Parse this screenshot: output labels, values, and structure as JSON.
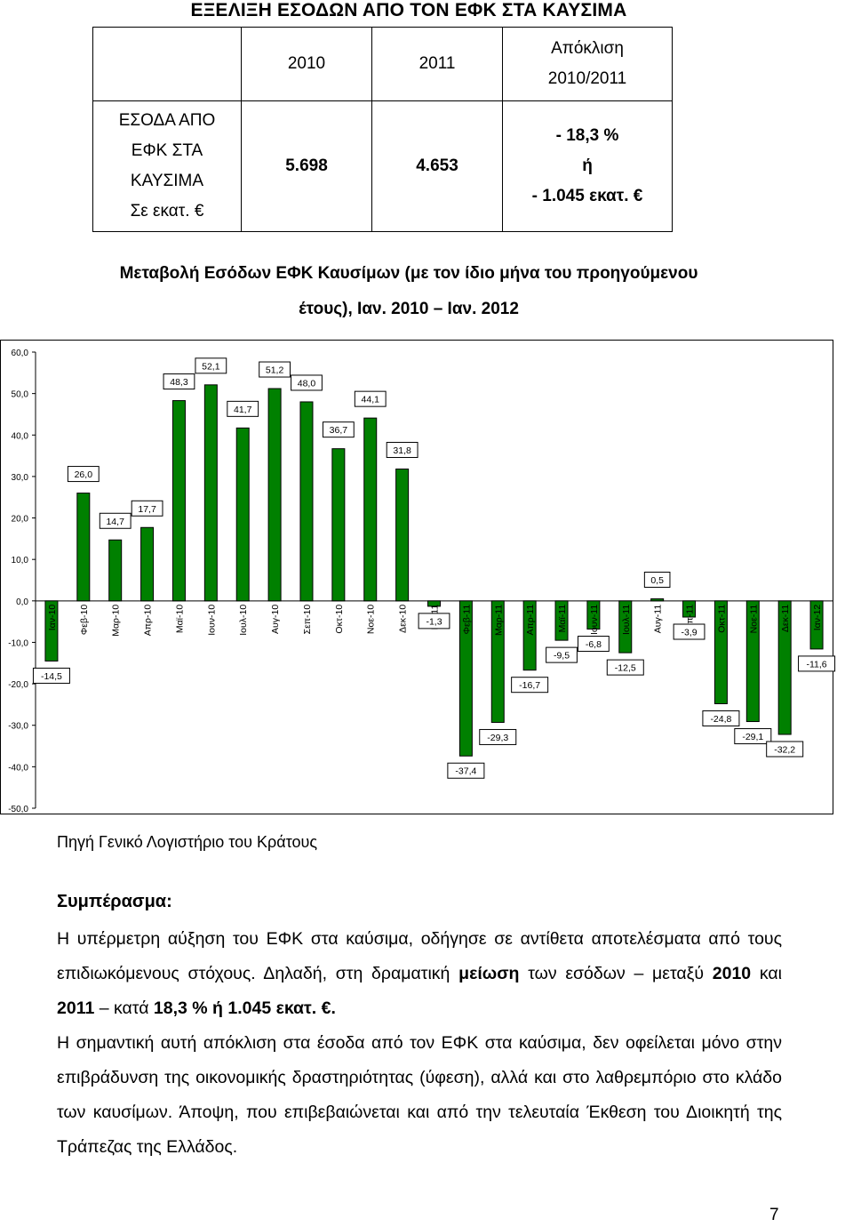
{
  "title": "ΕΞΕΛΙΞΗ ΕΣΟΔΩΝ ΑΠΟ ΤΟΝ ΕΦΚ ΣΤΑ ΚΑΥΣΙΜΑ",
  "table": {
    "header": {
      "year1": "2010",
      "year2": "2011",
      "deviation_line1": "Απόκλιση",
      "deviation_line2": "2010/2011"
    },
    "row": {
      "label_line1": "ΕΣΟΔΑ ΑΠΟ",
      "label_line2": "ΕΦΚ ΣΤΑ",
      "label_line3": "ΚΑΥΣΙΜΑ",
      "label_line4": "Σε εκατ. €",
      "value_2010": "5.698",
      "value_2011": "4.653",
      "deviation_line1": "- 18,3 %",
      "deviation_line2": "ή",
      "deviation_line3": "- 1.045 εκατ. €"
    }
  },
  "chart_title": {
    "line1": "Μεταβολή Εσόδων ΕΦΚ Καυσίμων (με τον ίδιο μήνα του προηγούμενου",
    "line2": "έτους), Ιαν. 2010 – Ιαν. 2012"
  },
  "chart_data": {
    "type": "bar",
    "categories": [
      "Ιαν-10",
      "Φεβ-10",
      "Μαρ-10",
      "Απρ-10",
      "Μαϊ-10",
      "Ιουν-10",
      "Ιουλ-10",
      "Αυγ-10",
      "Σεπ-10",
      "Οκτ-10",
      "Νοε-10",
      "Δεκ-10",
      "Ιαν-11",
      "Φεβ-11",
      "Μαρ-11",
      "Απρ-11",
      "Μαϊ-11",
      "Ιουν-11",
      "Ιουλ-11",
      "Αυγ-11",
      "Σεπ-11",
      "Οκτ-11",
      "Νοε-11",
      "Δεκ-11",
      "Ιαν-12"
    ],
    "values": [
      -14.5,
      26.0,
      14.7,
      17.7,
      48.3,
      52.1,
      41.7,
      51.2,
      48.0,
      36.7,
      44.1,
      31.8,
      -1.3,
      -37.4,
      -29.3,
      -16.7,
      -9.5,
      -6.8,
      -12.5,
      0.5,
      -3.9,
      -24.8,
      -29.1,
      -32.2,
      -11.6
    ],
    "value_labels": [
      "-14,5",
      "26,0",
      "14,7",
      "17,7",
      "48,3",
      "52,1",
      "41,7",
      "51,2",
      "48,0",
      "36,7",
      "44,1",
      "31,8",
      "-1,3",
      "-37,4",
      "-29,3",
      "-16,7",
      "-9,5",
      "-6,8",
      "-12,5",
      "0,5",
      "-3,9",
      "-24,8",
      "-29,1",
      "-32,2",
      "-11,6"
    ],
    "y_ticks": [
      "60,0",
      "50,0",
      "40,0",
      "30,0",
      "20,0",
      "10,0",
      "0,0",
      "-10,0",
      "-20,0",
      "-30,0",
      "-40,0",
      "-50,0"
    ],
    "ylim": [
      -50,
      60
    ],
    "grid": false,
    "bar_color": "#008000"
  },
  "source": "Πηγή Γενικό Λογιστήριο του Κράτους",
  "conclusion": {
    "heading": "Συμπέρασμα:",
    "p1_a": "Η υπέρμετρη αύξηση του ΕΦΚ στα καύσιμα, οδήγησε σε αντίθετα αποτελέσματα από τους επιδιωκόμενους στόχους. Δηλαδή, στη δραματική ",
    "p1_b": "μείωση",
    "p1_c": " των εσόδων – μεταξύ ",
    "p1_d": "2010",
    "p1_e": " και ",
    "p1_f": "2011",
    "p1_g": " – κατά ",
    "p1_h": "18,3 % ή 1.045 εκατ. €",
    "p1_i": ".",
    "p2": "Η σημαντική αυτή απόκλιση στα έσοδα από τον ΕΦΚ στα καύσιμα, δεν οφείλεται μόνο στην επιβράδυνση της οικονομικής δραστηριότητας (ύφεση), αλλά και στο λαθρεμπόριο στο κλάδο των καυσίμων. Άποψη, που επιβεβαιώνεται και από την τελευταία Έκθεση του Διοικητή της Τράπεζας της Ελλάδος."
  },
  "page_number": "7"
}
